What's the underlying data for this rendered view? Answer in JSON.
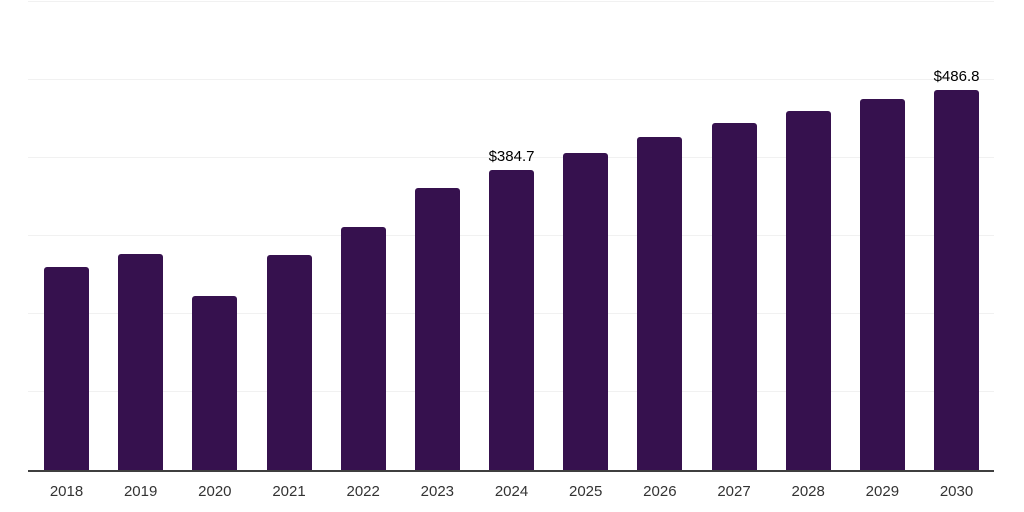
{
  "chart_data": {
    "type": "bar",
    "title": "",
    "xlabel": "",
    "ylabel": "",
    "categories": [
      "2018",
      "2019",
      "2020",
      "2021",
      "2022",
      "2023",
      "2024",
      "2025",
      "2026",
      "2027",
      "2028",
      "2029",
      "2030"
    ],
    "values": [
      260.5,
      277.0,
      222.5,
      276.0,
      312.0,
      361.5,
      384.7,
      406.5,
      427.0,
      445.0,
      460.5,
      475.5,
      486.8
    ],
    "value_labels": [
      "",
      "",
      "",
      "",
      "",
      "",
      "$384.7",
      "",
      "",
      "",
      "",
      "",
      "$486.8"
    ],
    "ylim": [
      0,
      600
    ],
    "grid": true,
    "gridline_step": 100,
    "legend_position": "none",
    "colors": {
      "bar": "#36114E",
      "gridline": "#f1f1f1",
      "axis_line": "#3f3f3f",
      "tick_label": "#333333",
      "data_label": "#000000",
      "background": "#ffffff"
    }
  }
}
